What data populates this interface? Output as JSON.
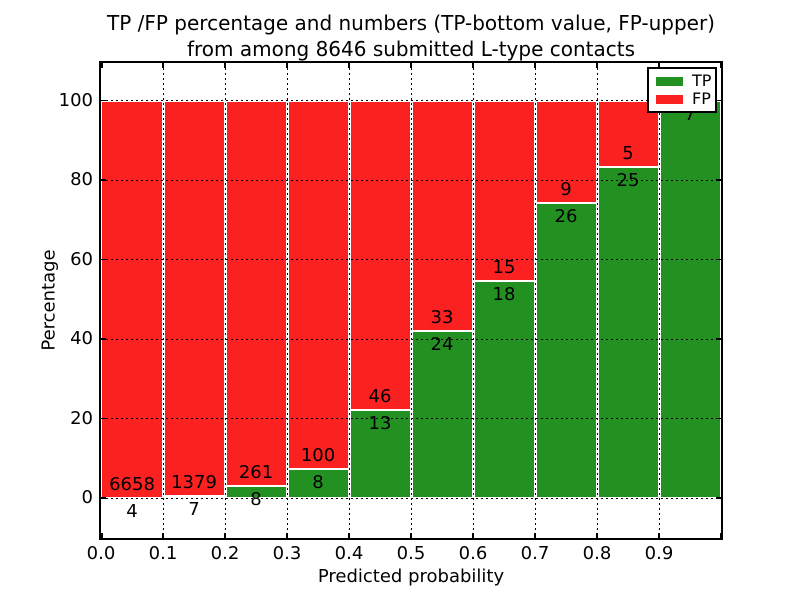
{
  "title": {
    "line1": "TP /FP percentage and numbers (TP-bottom value, FP-upper)",
    "line2": "from among 8646 submitted L-type contacts"
  },
  "y_axis": {
    "label": "Percentage",
    "ticks": [
      "0",
      "20",
      "40",
      "60",
      "80",
      "100"
    ]
  },
  "x_axis": {
    "label": "Predicted probability",
    "ticks": [
      "0.0",
      "0.1",
      "0.2",
      "0.3",
      "0.4",
      "0.5",
      "0.6",
      "0.7",
      "0.8",
      "0.9"
    ]
  },
  "legend": {
    "items": [
      {
        "label": "TP",
        "color": "#229122"
      },
      {
        "label": "FP",
        "color": "#fb2121"
      }
    ]
  },
  "colors": {
    "tp": "#229122",
    "fp": "#fb2121",
    "background": "#ffffff",
    "text": "#000000"
  },
  "chart_data": {
    "type": "bar",
    "stacked": true,
    "orientation": "vertical",
    "title": "TP /FP percentage and numbers (TP-bottom value, FP-upper) from among 8646 submitted L-type contacts",
    "xlabel": "Predicted probability",
    "ylabel": "Percentage",
    "total_submitted_contacts": 8646,
    "categories": [
      "0.0-0.1",
      "0.1-0.2",
      "0.2-0.3",
      "0.3-0.4",
      "0.4-0.5",
      "0.5-0.6",
      "0.6-0.7",
      "0.7-0.8",
      "0.8-0.9",
      "0.9-1.0"
    ],
    "bin_starts": [
      0.0,
      0.1,
      0.2,
      0.3,
      0.4,
      0.5,
      0.6,
      0.7,
      0.8,
      0.9
    ],
    "bin_width": 0.1,
    "series": [
      {
        "name": "TP",
        "color": "#229122",
        "counts": [
          4,
          7,
          8,
          8,
          13,
          24,
          18,
          26,
          25,
          7
        ],
        "percentages": [
          0.06,
          0.51,
          2.97,
          7.41,
          22.03,
          42.11,
          54.55,
          74.29,
          83.33,
          100.0
        ]
      },
      {
        "name": "FP",
        "color": "#fb2121",
        "counts": [
          6658,
          1379,
          261,
          100,
          46,
          33,
          15,
          9,
          5,
          null
        ],
        "percentages": [
          99.94,
          99.49,
          97.03,
          92.59,
          77.97,
          57.89,
          45.45,
          25.71,
          16.67,
          0.0
        ]
      }
    ],
    "label_convention": "TP count below segment boundary, FP count above segment boundary",
    "xlim": [
      0.0,
      1.0
    ],
    "ylim": [
      -10,
      109
    ],
    "yticks": [
      0,
      20,
      40,
      60,
      80,
      100
    ],
    "xticks": [
      0.0,
      0.1,
      0.2,
      0.3,
      0.4,
      0.5,
      0.6,
      0.7,
      0.8,
      0.9
    ],
    "grid": "dotted",
    "legend_position": "upper right"
  }
}
